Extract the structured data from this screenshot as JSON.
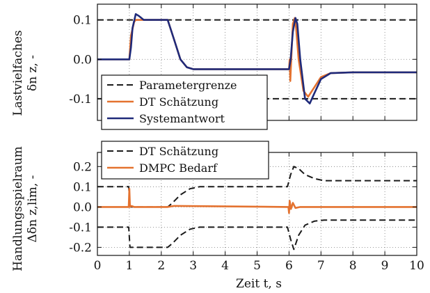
{
  "chart_data": [
    {
      "type": "line",
      "ylabel_line1": "Lastvielfaches",
      "ylabel_line2": "δn z, -",
      "xlim": [
        0,
        10
      ],
      "ylim": [
        -0.155,
        0.14
      ],
      "yticks": [
        -0.1,
        0.0,
        0.1
      ],
      "ytick_labels": [
        "-0.1",
        "0.0",
        "0.1"
      ],
      "legend_placement": "lower-left",
      "series": [
        {
          "name": "Parametergrenze",
          "color": "#1a1a1a",
          "dash": "dashed",
          "segments": [
            {
              "x": [
                0,
                10
              ],
              "y": [
                0.1,
                0.1
              ]
            },
            {
              "x": [
                0,
                10
              ],
              "y": [
                -0.1,
                -0.1
              ]
            }
          ]
        },
        {
          "name": "DT Schätzung",
          "color": "#e4722f",
          "dash": "solid",
          "x": [
            0,
            1.0,
            1.05,
            1.15,
            1.2,
            1.3,
            2.2,
            2.4,
            2.6,
            2.8,
            3.0,
            6.0,
            6.02,
            6.04,
            6.08,
            6.12,
            6.18,
            6.22,
            6.3,
            6.45,
            6.6,
            6.8,
            7.0,
            7.3,
            8.0,
            10.0
          ],
          "y": [
            0.0,
            0.0,
            0.06,
            0.095,
            0.1,
            0.1,
            0.1,
            0.05,
            0.0,
            -0.02,
            -0.025,
            -0.025,
            0.0,
            -0.055,
            0.02,
            0.09,
            0.105,
            0.08,
            0.0,
            -0.08,
            -0.095,
            -0.07,
            -0.045,
            -0.035,
            -0.033,
            -0.033
          ]
        },
        {
          "name": "Systemantwort",
          "color": "#1f2a7a",
          "dash": "solid",
          "x": [
            0,
            1.0,
            1.05,
            1.1,
            1.2,
            1.3,
            1.45,
            2.2,
            2.4,
            2.6,
            2.8,
            3.0,
            6.0,
            6.05,
            6.12,
            6.2,
            6.26,
            6.35,
            6.5,
            6.65,
            6.8,
            7.0,
            7.3,
            8.0,
            10.0
          ],
          "y": [
            0.0,
            0.0,
            0.03,
            0.08,
            0.115,
            0.11,
            0.1,
            0.1,
            0.05,
            0.0,
            -0.02,
            -0.025,
            -0.025,
            0.0,
            0.07,
            0.105,
            0.09,
            0.0,
            -0.1,
            -0.112,
            -0.085,
            -0.05,
            -0.035,
            -0.033,
            -0.033
          ]
        }
      ]
    },
    {
      "type": "line",
      "ylabel_line1": "Handlungsspielraum",
      "ylabel_line2": "Δδn z,lim, -",
      "xlabel": "Zeit t, s",
      "xlim": [
        0,
        10
      ],
      "xticks": [
        0,
        1,
        2,
        3,
        4,
        5,
        6,
        7,
        8,
        9,
        10
      ],
      "xtick_labels": [
        "0",
        "1",
        "2",
        "3",
        "4",
        "5",
        "6",
        "7",
        "8",
        "9",
        "10"
      ],
      "ylim": [
        -0.24,
        0.27
      ],
      "yticks": [
        -0.2,
        -0.1,
        0.0,
        0.1,
        0.2
      ],
      "ytick_labels": [
        "-0.2",
        "-0.1",
        "0.0",
        "0.1",
        "0.2"
      ],
      "legend_placement": "upper-left",
      "series": [
        {
          "name": "DT Schätzung",
          "color": "#1a1a1a",
          "dash": "dashed",
          "segments": [
            {
              "x": [
                0,
                0.98,
                1.02,
                1.1,
                2.2,
                2.35,
                2.6,
                2.9,
                3.2,
                5.95,
                6.05,
                6.15,
                6.3,
                6.5,
                6.8,
                7.1,
                10
              ],
              "y": [
                0.1,
                0.1,
                0.0,
                0.0,
                0.0,
                0.02,
                0.06,
                0.09,
                0.1,
                0.1,
                0.16,
                0.2,
                0.19,
                0.16,
                0.14,
                0.13,
                0.13
              ]
            },
            {
              "x": [
                0,
                0.98,
                1.02,
                1.1,
                2.2,
                2.35,
                2.6,
                2.9,
                3.2,
                5.95,
                6.05,
                6.15,
                6.3,
                6.5,
                6.8,
                7.1,
                10
              ],
              "y": [
                -0.1,
                -0.1,
                -0.2,
                -0.2,
                -0.2,
                -0.18,
                -0.14,
                -0.11,
                -0.1,
                -0.1,
                -0.16,
                -0.21,
                -0.14,
                -0.09,
                -0.07,
                -0.065,
                -0.065
              ]
            }
          ]
        },
        {
          "name": "DMPC Bedarf",
          "color": "#e4722f",
          "dash": "solid",
          "x": [
            0,
            0.98,
            1.0,
            1.02,
            1.06,
            1.15,
            2.2,
            2.4,
            5.98,
            6.0,
            6.02,
            6.06,
            6.12,
            6.2,
            6.35,
            10
          ],
          "y": [
            0.0,
            0.0,
            0.09,
            0.0,
            0.005,
            0.0,
            0.0,
            0.005,
            0.0,
            -0.03,
            0.03,
            -0.01,
            0.02,
            -0.005,
            0.0,
            0.0
          ]
        }
      ]
    }
  ]
}
